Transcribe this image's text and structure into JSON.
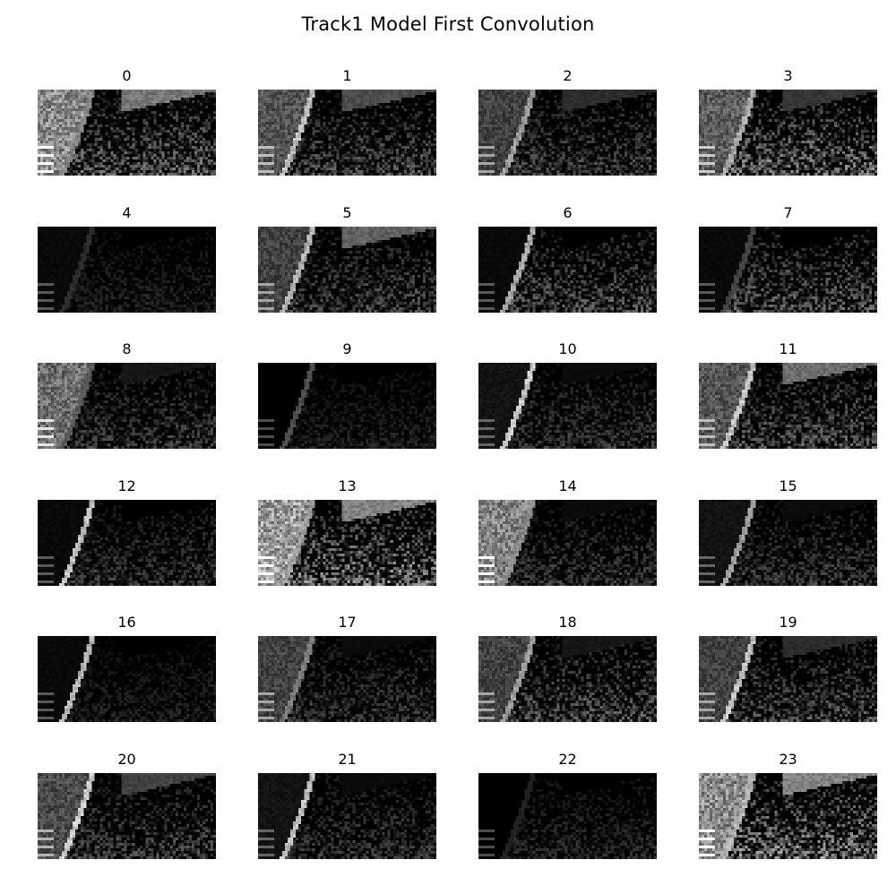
{
  "figure": {
    "title": "Track1 Model First Convolution",
    "colormap": "gray",
    "background": "#000000"
  },
  "feature_maps": [
    {
      "label": "0",
      "tone": {
        "left_bank": 0.75,
        "right_bank": 0.55,
        "edge_line": 0.6,
        "road_texture": 0.35
      }
    },
    {
      "label": "1",
      "tone": {
        "left_bank": 0.45,
        "right_bank": 0.35,
        "edge_line": 0.85,
        "road_texture": 0.28
      }
    },
    {
      "label": "2",
      "tone": {
        "left_bank": 0.35,
        "right_bank": 0.2,
        "edge_line": 0.7,
        "road_texture": 0.25
      }
    },
    {
      "label": "3",
      "tone": {
        "left_bank": 0.5,
        "right_bank": 0.25,
        "edge_line": 0.75,
        "road_texture": 0.4
      }
    },
    {
      "label": "4",
      "tone": {
        "left_bank": 0.05,
        "right_bank": 0.0,
        "edge_line": 0.2,
        "road_texture": 0.12
      }
    },
    {
      "label": "5",
      "tone": {
        "left_bank": 0.35,
        "right_bank": 0.45,
        "edge_line": 0.8,
        "road_texture": 0.25
      }
    },
    {
      "label": "6",
      "tone": {
        "left_bank": 0.05,
        "right_bank": 0.0,
        "edge_line": 0.75,
        "road_texture": 0.3
      }
    },
    {
      "label": "7",
      "tone": {
        "left_bank": 0.05,
        "right_bank": 0.0,
        "edge_line": 0.3,
        "road_texture": 0.32
      }
    },
    {
      "label": "8",
      "tone": {
        "left_bank": 0.6,
        "right_bank": 0.1,
        "edge_line": 0.4,
        "road_texture": 0.22
      }
    },
    {
      "label": "9",
      "tone": {
        "left_bank": 0.0,
        "right_bank": 0.0,
        "edge_line": 0.35,
        "road_texture": 0.12
      }
    },
    {
      "label": "10",
      "tone": {
        "left_bank": 0.1,
        "right_bank": 0.05,
        "edge_line": 0.9,
        "road_texture": 0.2
      }
    },
    {
      "label": "11",
      "tone": {
        "left_bank": 0.45,
        "right_bank": 0.5,
        "edge_line": 0.85,
        "road_texture": 0.3
      }
    },
    {
      "label": "12",
      "tone": {
        "left_bank": 0.05,
        "right_bank": 0.0,
        "edge_line": 0.85,
        "road_texture": 0.2
      }
    },
    {
      "label": "13",
      "tone": {
        "left_bank": 0.85,
        "right_bank": 0.6,
        "edge_line": 0.7,
        "road_texture": 0.45
      }
    },
    {
      "label": "14",
      "tone": {
        "left_bank": 0.7,
        "right_bank": 0.05,
        "edge_line": 0.6,
        "road_texture": 0.2
      }
    },
    {
      "label": "15",
      "tone": {
        "left_bank": 0.1,
        "right_bank": 0.05,
        "edge_line": 0.7,
        "road_texture": 0.22
      }
    },
    {
      "label": "16",
      "tone": {
        "left_bank": 0.05,
        "right_bank": 0.0,
        "edge_line": 0.8,
        "road_texture": 0.12
      }
    },
    {
      "label": "17",
      "tone": {
        "left_bank": 0.35,
        "right_bank": 0.05,
        "edge_line": 0.55,
        "road_texture": 0.2
      }
    },
    {
      "label": "18",
      "tone": {
        "left_bank": 0.35,
        "right_bank": 0.1,
        "edge_line": 0.7,
        "road_texture": 0.3
      }
    },
    {
      "label": "19",
      "tone": {
        "left_bank": 0.35,
        "right_bank": 0.2,
        "edge_line": 0.85,
        "road_texture": 0.28
      }
    },
    {
      "label": "20",
      "tone": {
        "left_bank": 0.4,
        "right_bank": 0.3,
        "edge_line": 0.9,
        "road_texture": 0.25
      }
    },
    {
      "label": "21",
      "tone": {
        "left_bank": 0.1,
        "right_bank": 0.05,
        "edge_line": 0.85,
        "road_texture": 0.2
      }
    },
    {
      "label": "22",
      "tone": {
        "left_bank": 0.0,
        "right_bank": 0.0,
        "edge_line": 0.15,
        "road_texture": 0.15
      }
    },
    {
      "label": "23",
      "tone": {
        "left_bank": 0.75,
        "right_bank": 0.6,
        "edge_line": 0.8,
        "road_texture": 0.45
      }
    }
  ]
}
